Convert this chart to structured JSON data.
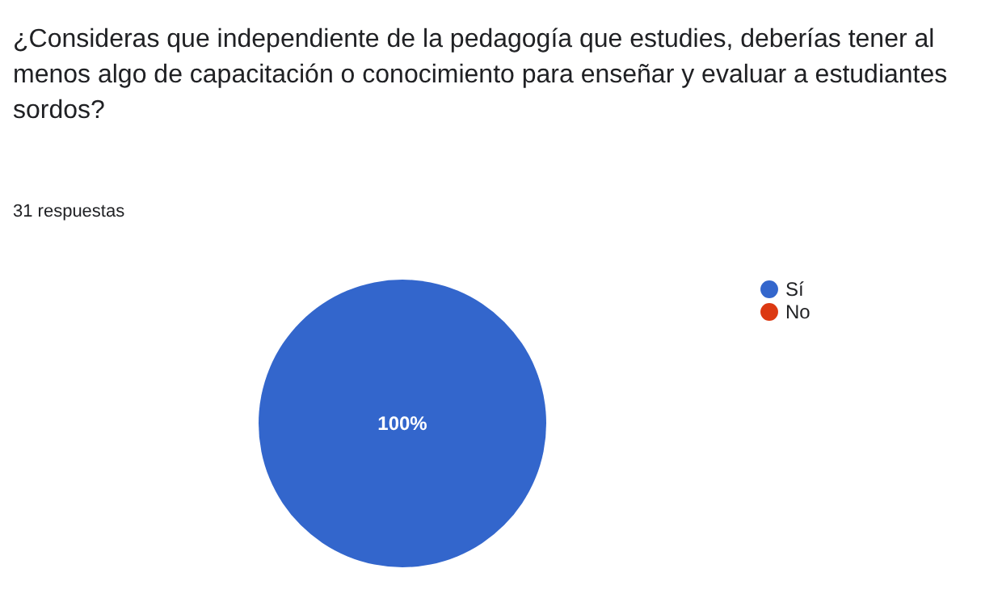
{
  "chart_data": {
    "type": "pie",
    "title": "¿Consideras que independiente de la pedagogía que estudies, deberías tener al menos algo de capacitación o conocimiento para enseñar y evaluar a estudiantes sordos?",
    "subtitle": "31 respuestas",
    "categories": [
      "Sí",
      "No"
    ],
    "values": [
      100,
      0
    ],
    "colors": [
      "#3366cc",
      "#dc3912"
    ],
    "value_labels": [
      "100%",
      null
    ],
    "legend": "right"
  }
}
